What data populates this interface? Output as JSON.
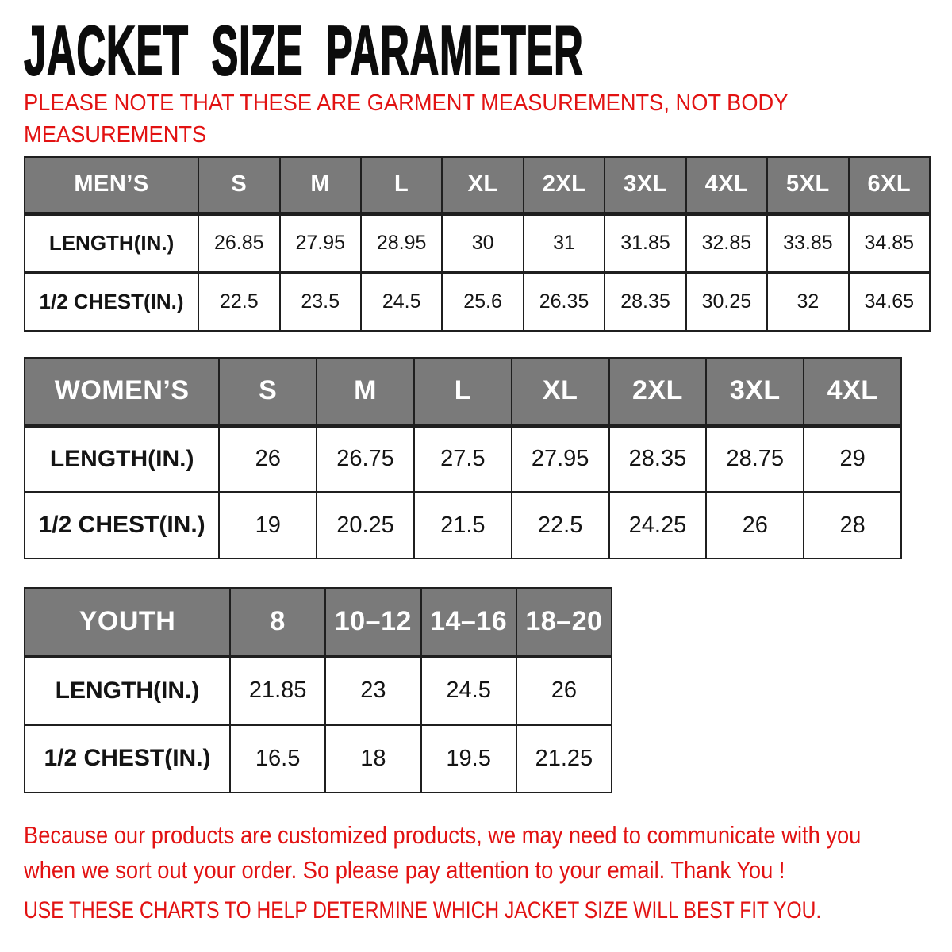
{
  "page": {
    "title": "JACKET SIZE PARAMETER",
    "note_lines": [
      "PLEASE NOTE THAT THESE ARE GARMENT MEASUREMENTS, NOT BODY",
      "MEASUREMENTS"
    ]
  },
  "colors": {
    "header_bg": "#7a7a7a",
    "header_text": "#ffffff",
    "note_red": "#e21212",
    "border": "#1f1f1f"
  },
  "tables": [
    {
      "name": "mens",
      "columns": [
        "MEN’S",
        "S",
        "M",
        "L",
        "XL",
        "2XL",
        "3XL",
        "4XL",
        "5XL",
        "6XL"
      ],
      "rows": [
        {
          "label": "LENGTH(IN.)",
          "values": [
            "26.85",
            "27.95",
            "28.95",
            "30",
            "31",
            "31.85",
            "32.85",
            "33.85",
            "34.85"
          ]
        },
        {
          "label": "1/2 CHEST(IN.)",
          "values": [
            "22.5",
            "23.5",
            "24.5",
            "25.6",
            "26.35",
            "28.35",
            "30.25",
            "32",
            "34.65"
          ]
        }
      ]
    },
    {
      "name": "womens",
      "columns": [
        "WOMEN’S",
        "S",
        "M",
        "L",
        "XL",
        "2XL",
        "3XL",
        "4XL"
      ],
      "rows": [
        {
          "label": "LENGTH(IN.)",
          "values": [
            "26",
            "26.75",
            "27.5",
            "27.95",
            "28.35",
            "28.75",
            "29"
          ]
        },
        {
          "label": "1/2 CHEST(IN.)",
          "values": [
            "19",
            "20.25",
            "21.5",
            "22.5",
            "24.25",
            "26",
            "28"
          ]
        }
      ]
    },
    {
      "name": "youth",
      "columns": [
        "YOUTH",
        "8",
        "10–12",
        "14–16",
        "18–20"
      ],
      "rows": [
        {
          "label": "LENGTH(IN.)",
          "values": [
            "21.85",
            "23",
            "24.5",
            "26"
          ]
        },
        {
          "label": "1/2 CHEST(IN.)",
          "values": [
            "16.5",
            "18",
            "19.5",
            "21.25"
          ]
        }
      ]
    }
  ],
  "footer": {
    "paragraph_lines": [
      "Because our products are customized products, we may need to communicate with you",
      "when we sort out your order. So please pay attention to your email. Thank You !"
    ],
    "advice": "USE THESE CHARTS TO HELP DETERMINE WHICH JACKET SIZE WILL BEST FIT YOU."
  }
}
